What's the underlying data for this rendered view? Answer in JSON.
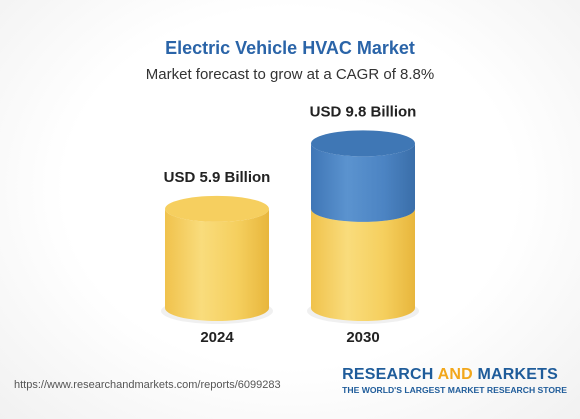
{
  "header": {
    "title": "Electric Vehicle HVAC Market",
    "subtitle": "Market forecast to grow at a CAGR of 8.8%"
  },
  "chart_data": {
    "type": "bar",
    "categories": [
      "2024",
      "2030"
    ],
    "values": [
      5.9,
      9.8
    ],
    "value_labels": [
      "USD 5.9 Billion",
      "USD 9.8 Billion"
    ],
    "title": "Electric Vehicle HVAC Market",
    "subtitle": "Market forecast to grow at a CAGR of 8.8%",
    "grid": false,
    "legend": "none",
    "colors": {
      "base": "#f6cf5f",
      "base_dark": "#efbd3f",
      "growth": "#4f86c2",
      "growth_dark": "#3c73b1"
    }
  },
  "footer": {
    "url": "https://www.researchandmarkets.com/reports/6099283",
    "brand_part1": "RESEARCH ",
    "brand_part2": "AND",
    "brand_part3": " MARKETS",
    "tagline": "THE WORLD'S LARGEST MARKET RESEARCH STORE"
  }
}
